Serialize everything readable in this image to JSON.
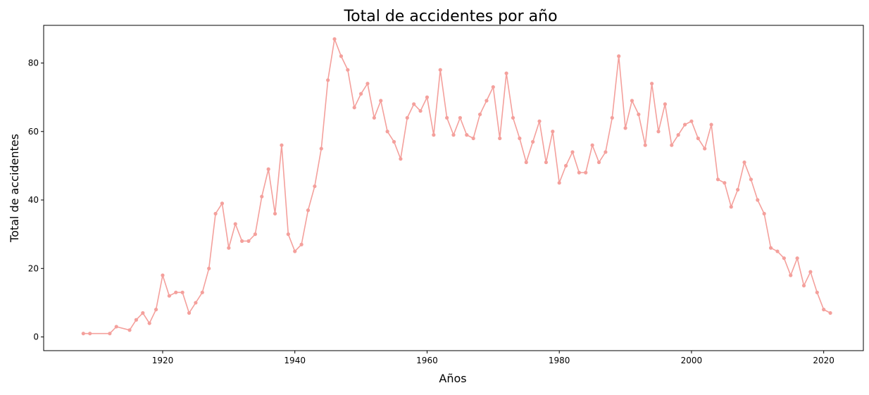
{
  "chart_data": {
    "type": "line",
    "title": "Total de accidentes por año",
    "xlabel": "Años",
    "ylabel": "Total de accidentes",
    "xlim": [
      1902,
      2026
    ],
    "ylim": [
      -4,
      91
    ],
    "x_ticks": [
      1920,
      1940,
      1960,
      1980,
      2000,
      2020
    ],
    "y_ticks": [
      0,
      20,
      40,
      60,
      80
    ],
    "grid": false,
    "legend": "none",
    "series": [
      {
        "color": "#f4a09c",
        "marker": "circle",
        "x": [
          1908,
          1909,
          1912,
          1913,
          1915,
          1916,
          1917,
          1918,
          1919,
          1920,
          1921,
          1922,
          1923,
          1924,
          1925,
          1926,
          1927,
          1928,
          1929,
          1930,
          1931,
          1932,
          1933,
          1934,
          1935,
          1936,
          1937,
          1938,
          1939,
          1940,
          1941,
          1942,
          1943,
          1944,
          1945,
          1946,
          1947,
          1948,
          1949,
          1950,
          1951,
          1952,
          1953,
          1954,
          1955,
          1956,
          1957,
          1958,
          1959,
          1960,
          1961,
          1962,
          1963,
          1964,
          1965,
          1966,
          1967,
          1968,
          1969,
          1970,
          1971,
          1972,
          1973,
          1974,
          1975,
          1976,
          1977,
          1978,
          1979,
          1980,
          1981,
          1982,
          1983,
          1984,
          1985,
          1986,
          1987,
          1988,
          1989,
          1990,
          1991,
          1992,
          1993,
          1994,
          1995,
          1996,
          1997,
          1998,
          1999,
          2000,
          2001,
          2002,
          2003,
          2004,
          2005,
          2006,
          2007,
          2008,
          2009,
          2010,
          2011,
          2012,
          2013,
          2014,
          2015,
          2016,
          2017,
          2018,
          2019,
          2020,
          2021
        ],
        "y": [
          1,
          1,
          1,
          3,
          2,
          5,
          7,
          4,
          8,
          18,
          12,
          13,
          13,
          7,
          10,
          13,
          20,
          36,
          39,
          26,
          33,
          28,
          28,
          30,
          41,
          49,
          36,
          56,
          30,
          25,
          27,
          37,
          44,
          55,
          75,
          87,
          82,
          78,
          67,
          71,
          74,
          64,
          69,
          60,
          57,
          52,
          64,
          68,
          66,
          70,
          59,
          78,
          64,
          59,
          64,
          59,
          58,
          65,
          69,
          73,
          58,
          77,
          64,
          58,
          51,
          57,
          63,
          51,
          60,
          45,
          50,
          54,
          48,
          48,
          56,
          51,
          54,
          64,
          82,
          61,
          69,
          65,
          56,
          74,
          60,
          68,
          56,
          59,
          62,
          63,
          58,
          55,
          62,
          46,
          45,
          38,
          43,
          51,
          46,
          40,
          36,
          26,
          25,
          23,
          18,
          23,
          15,
          19,
          13,
          8,
          7
        ]
      }
    ]
  }
}
